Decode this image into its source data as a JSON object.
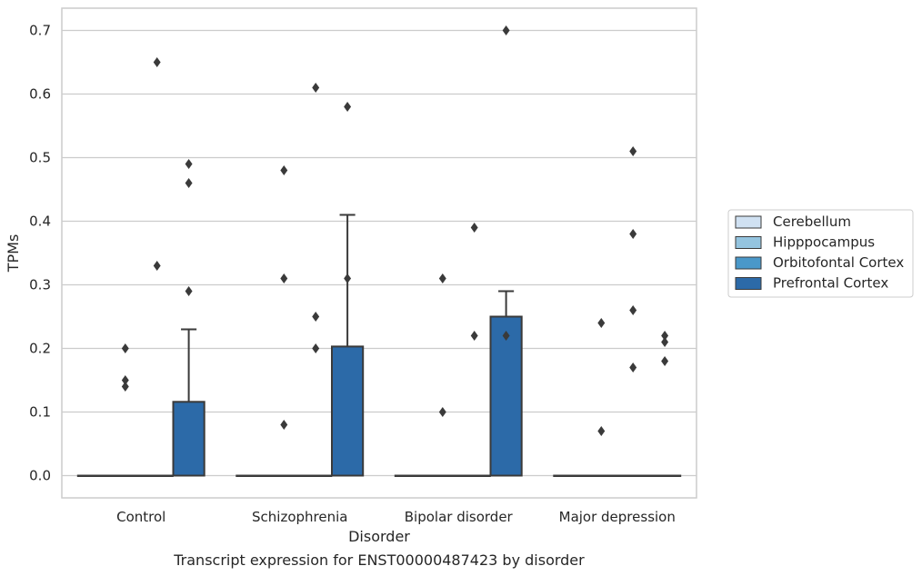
{
  "chart_data": {
    "type": "box",
    "xlabel": "Disorder",
    "ylabel": "TPMs",
    "ylim": [
      -0.035,
      0.735
    ],
    "yticks": [
      0.0,
      0.1,
      0.2,
      0.3,
      0.4,
      0.5,
      0.6,
      0.7
    ],
    "ytick_labels": [
      "0.0",
      "0.1",
      "0.2",
      "0.3",
      "0.4",
      "0.5",
      "0.6",
      "0.7"
    ],
    "grid": "horizontal",
    "legend_position": "right",
    "caption": "Transcript expression for ENST00000487423 by disorder",
    "categories": [
      "Control",
      "Schizophrenia",
      "Bipolar disorder",
      "Major depression"
    ],
    "series": [
      {
        "name": "Cerebellum",
        "color": "#d0e1f2",
        "boxes": [
          {
            "q1": 0.0,
            "median": 0.0,
            "q3": 0.0,
            "whisker_low": 0.0,
            "whisker_high": 0.0,
            "outliers": []
          },
          {
            "q1": 0.0,
            "median": 0.0,
            "q3": 0.0,
            "whisker_low": 0.0,
            "whisker_high": 0.0,
            "outliers": []
          },
          {
            "q1": 0.0,
            "median": 0.0,
            "q3": 0.0,
            "whisker_low": 0.0,
            "whisker_high": 0.0,
            "outliers": []
          },
          {
            "q1": 0.0,
            "median": 0.0,
            "q3": 0.0,
            "whisker_low": 0.0,
            "whisker_high": 0.0,
            "outliers": []
          }
        ]
      },
      {
        "name": "Hipppocampus",
        "color": "#94c4df",
        "boxes": [
          {
            "q1": 0.0,
            "median": 0.0,
            "q3": 0.0,
            "whisker_low": 0.0,
            "whisker_high": 0.0,
            "outliers": [
              0.2,
              0.15,
              0.14
            ]
          },
          {
            "q1": 0.0,
            "median": 0.0,
            "q3": 0.0,
            "whisker_low": 0.0,
            "whisker_high": 0.0,
            "outliers": [
              0.48,
              0.31,
              0.08
            ]
          },
          {
            "q1": 0.0,
            "median": 0.0,
            "q3": 0.0,
            "whisker_low": 0.0,
            "whisker_high": 0.0,
            "outliers": [
              0.31,
              0.1
            ]
          },
          {
            "q1": 0.0,
            "median": 0.0,
            "q3": 0.0,
            "whisker_low": 0.0,
            "whisker_high": 0.0,
            "outliers": [
              0.24,
              0.07
            ]
          }
        ]
      },
      {
        "name": "Orbitofontal Cortex",
        "color": "#4a98c9",
        "boxes": [
          {
            "q1": 0.0,
            "median": 0.0,
            "q3": 0.0,
            "whisker_low": 0.0,
            "whisker_high": 0.0,
            "outliers": [
              0.65,
              0.33
            ]
          },
          {
            "q1": 0.0,
            "median": 0.0,
            "q3": 0.0,
            "whisker_low": 0.0,
            "whisker_high": 0.0,
            "outliers": [
              0.61,
              0.25,
              0.2
            ]
          },
          {
            "q1": 0.0,
            "median": 0.0,
            "q3": 0.0,
            "whisker_low": 0.0,
            "whisker_high": 0.0,
            "outliers": [
              0.39,
              0.22
            ]
          },
          {
            "q1": 0.0,
            "median": 0.0,
            "q3": 0.0,
            "whisker_low": 0.0,
            "whisker_high": 0.0,
            "outliers": [
              0.51,
              0.38,
              0.26,
              0.17
            ]
          }
        ]
      },
      {
        "name": "Prefrontal Cortex",
        "color": "#2c6aa8",
        "boxes": [
          {
            "q1": 0.0,
            "median": 0.0,
            "q3": 0.116,
            "whisker_low": 0.0,
            "whisker_high": 0.23,
            "outliers": [
              0.49,
              0.46,
              0.29
            ]
          },
          {
            "q1": 0.0,
            "median": 0.0,
            "q3": 0.203,
            "whisker_low": 0.0,
            "whisker_high": 0.41,
            "outliers": [
              0.58,
              0.31
            ]
          },
          {
            "q1": 0.0,
            "median": 0.0,
            "q3": 0.25,
            "whisker_low": 0.0,
            "whisker_high": 0.29,
            "outliers": [
              0.7,
              0.22
            ]
          },
          {
            "q1": 0.0,
            "median": 0.0,
            "q3": 0.0,
            "whisker_low": 0.0,
            "whisker_high": 0.0,
            "outliers": [
              0.22,
              0.21,
              0.18
            ]
          }
        ]
      }
    ]
  }
}
